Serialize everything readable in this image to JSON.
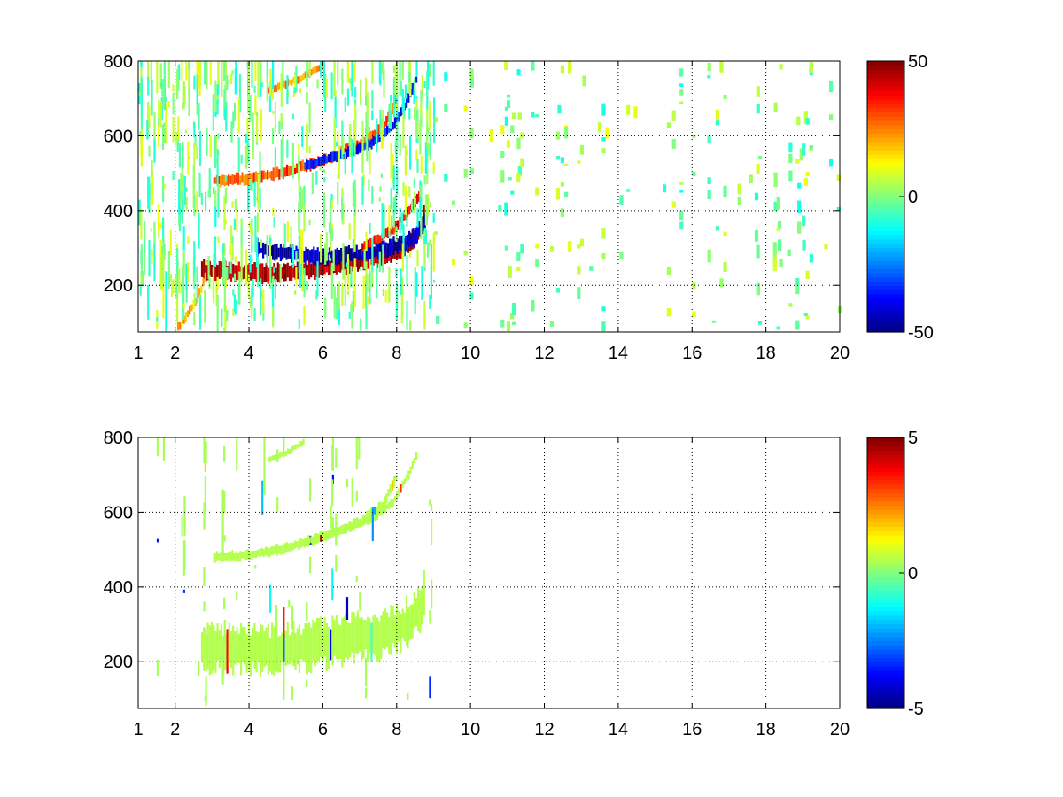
{
  "chart_data": [
    {
      "type": "heatmap",
      "title": "",
      "xlabel": "",
      "ylabel": "",
      "xlim": [
        1,
        20
      ],
      "ylim": [
        75,
        800
      ],
      "x_ticks": [
        "1",
        "2",
        "4",
        "6",
        "8",
        "10",
        "12",
        "14",
        "16",
        "18",
        "20"
      ],
      "y_ticks": [
        "200",
        "400",
        "600",
        "800"
      ],
      "grid": true,
      "colormap": "jet",
      "clim": [
        -50,
        50
      ],
      "colorbar_ticks": [
        "50",
        "0",
        "-50"
      ],
      "bands": [
        {
          "x": [
            2.7,
            3.5,
            4.5,
            5.5,
            6.5,
            7.5,
            8.2,
            8.6,
            8.75
          ],
          "y": [
            240,
            235,
            232,
            240,
            255,
            275,
            300,
            340,
            400
          ],
          "value": 45,
          "width": 18
        },
        {
          "x": [
            4.2,
            5.0,
            6.0,
            7.0,
            7.8,
            8.4,
            8.7,
            8.8
          ],
          "y": [
            300,
            285,
            275,
            285,
            300,
            325,
            360,
            400
          ],
          "value": -45,
          "width": 16
        },
        {
          "x": [
            7.0,
            7.6,
            8.0,
            8.3,
            8.6
          ],
          "y": [
            300,
            330,
            360,
            400,
            440
          ],
          "value": 35,
          "width": 10
        },
        {
          "x": [
            3.0,
            4.0,
            5.0,
            6.0,
            7.0,
            7.6,
            8.0
          ],
          "y": [
            480,
            485,
            505,
            535,
            575,
            620,
            700
          ],
          "value": 30,
          "width": 12
        },
        {
          "x": [
            5.5,
            6.5,
            7.3,
            7.9,
            8.3,
            8.55
          ],
          "y": [
            520,
            550,
            580,
            630,
            700,
            760
          ],
          "value": -35,
          "width": 10
        },
        {
          "x": [
            2.0,
            2.3,
            2.6,
            2.8
          ],
          "y": [
            80,
            120,
            170,
            220
          ],
          "value": 20,
          "width": 10
        },
        {
          "x": [
            4.5,
            5.0,
            5.5,
            6.0
          ],
          "y": [
            720,
            740,
            760,
            790
          ],
          "value": 25,
          "width": 8
        }
      ]
    },
    {
      "type": "heatmap",
      "title": "",
      "xlabel": "",
      "ylabel": "",
      "xlim": [
        1,
        20
      ],
      "ylim": [
        75,
        800
      ],
      "x_ticks": [
        "1",
        "2",
        "4",
        "6",
        "8",
        "10",
        "12",
        "14",
        "16",
        "18",
        "20"
      ],
      "y_ticks": [
        "200",
        "400",
        "600",
        "800"
      ],
      "grid": true,
      "colormap": "jet",
      "clim": [
        -5,
        5
      ],
      "colorbar_ticks": [
        "5",
        "0",
        "-5"
      ],
      "bands": [
        {
          "x": [
            2.7,
            3.5,
            4.5,
            5.5,
            6.5,
            7.5,
            8.2,
            8.6,
            8.75
          ],
          "y": [
            240,
            235,
            232,
            240,
            255,
            275,
            300,
            340,
            400
          ],
          "value": 0.5,
          "width": 45
        },
        {
          "x": [
            3.0,
            4.0,
            5.0,
            6.0,
            7.0,
            7.6,
            8.0
          ],
          "y": [
            480,
            485,
            505,
            535,
            575,
            620,
            700
          ],
          "value": 0.5,
          "width": 10
        },
        {
          "x": [
            5.5,
            6.5,
            7.3,
            7.9,
            8.3,
            8.55
          ],
          "y": [
            520,
            550,
            580,
            630,
            700,
            760
          ],
          "value": 0.5,
          "width": 8
        },
        {
          "x": [
            4.5,
            5.0,
            5.5
          ],
          "y": [
            740,
            760,
            790
          ],
          "value": 0.5,
          "width": 6
        }
      ]
    }
  ]
}
